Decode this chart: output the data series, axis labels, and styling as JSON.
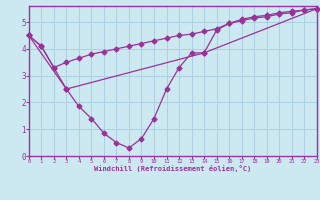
{
  "line1_x": [
    0,
    1,
    2,
    3,
    4,
    5,
    6,
    7,
    8,
    9,
    10,
    11,
    12,
    13,
    14,
    15,
    16,
    17,
    18,
    19,
    20,
    21,
    22,
    23
  ],
  "line1_y": [
    4.5,
    4.1,
    3.3,
    2.5,
    1.85,
    1.4,
    0.85,
    0.5,
    0.3,
    0.65,
    1.4,
    2.5,
    3.3,
    3.85,
    3.85,
    4.7,
    4.95,
    5.1,
    5.2,
    5.25,
    5.35,
    5.4,
    5.45,
    5.5
  ],
  "line2_x": [
    0,
    1,
    2,
    3,
    4,
    5,
    6,
    7,
    8,
    9,
    10,
    11,
    12,
    13,
    14,
    15,
    16,
    17,
    18,
    19,
    20,
    21,
    22,
    23
  ],
  "line2_y": [
    4.5,
    4.1,
    3.3,
    3.5,
    3.65,
    3.8,
    3.9,
    4.0,
    4.1,
    4.2,
    4.3,
    4.4,
    4.5,
    4.55,
    4.65,
    4.75,
    4.95,
    5.05,
    5.15,
    5.2,
    5.3,
    5.35,
    5.45,
    5.5
  ],
  "line3_x": [
    0,
    3,
    14,
    23
  ],
  "line3_y": [
    4.5,
    2.5,
    3.85,
    5.5
  ],
  "color": "#993399",
  "bg_color": "#cce8f0",
  "grid_color": "#aaccdd",
  "spine_color": "#9933aa",
  "xlim": [
    0,
    23
  ],
  "ylim": [
    0,
    5.6
  ],
  "xlabel": "Windchill (Refroidissement éolien,°C)",
  "xticks": [
    0,
    1,
    2,
    3,
    4,
    5,
    6,
    7,
    8,
    9,
    10,
    11,
    12,
    13,
    14,
    15,
    16,
    17,
    18,
    19,
    20,
    21,
    22,
    23
  ],
  "yticks": [
    0,
    1,
    2,
    3,
    4,
    5
  ],
  "markersize": 2.5,
  "linewidth": 0.9
}
